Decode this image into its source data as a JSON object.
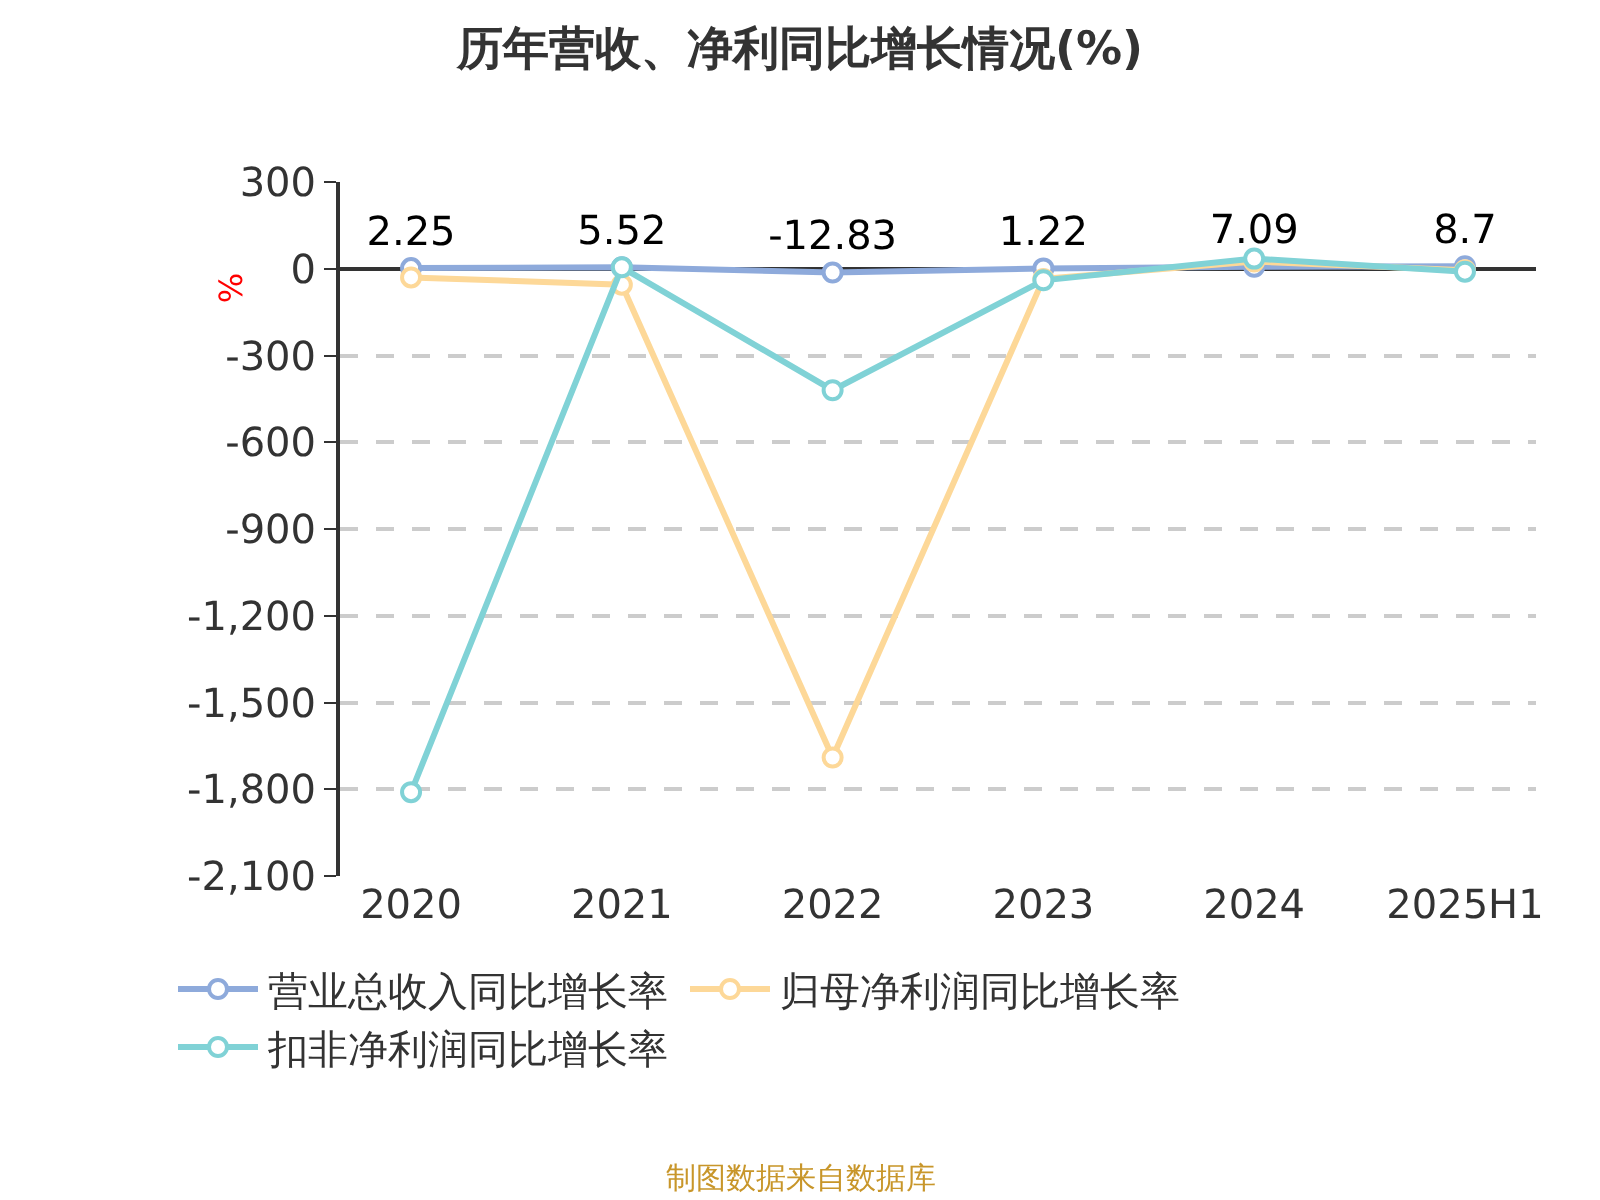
{
  "chart_data": {
    "type": "line",
    "title": "历年营收、净利同比增长情况(%)",
    "ylabel": "%",
    "categories": [
      "2020",
      "2021",
      "2022",
      "2023",
      "2024",
      "2025H1"
    ],
    "series": [
      {
        "name": "营业总收入同比增长率",
        "color": "#8eaadb",
        "values": [
          2.25,
          5.52,
          -12.83,
          1.22,
          7.09,
          8.7
        ],
        "value_labels": [
          "2.25",
          "5.52",
          "-12.83",
          "1.22",
          "7.09",
          "8.7"
        ]
      },
      {
        "name": "归母净利润同比增长率",
        "color": "#fdd898",
        "values": [
          -30,
          -55,
          -1690,
          -35,
          25,
          -5
        ]
      },
      {
        "name": "扣非净利润同比增长率",
        "color": "#80d2d6",
        "values": [
          -1810,
          5,
          -420,
          -40,
          35,
          -10
        ]
      }
    ],
    "ylim": [
      -2100,
      300
    ],
    "yticks": [
      300,
      0,
      -300,
      -600,
      -900,
      {
        "value": -1200,
        "label": "-1,200"
      },
      {
        "value": -1500,
        "label": "-1,500"
      },
      {
        "value": -1800,
        "label": "-1,800"
      },
      {
        "value": -2100,
        "label": "-2,100"
      }
    ],
    "grid": "y",
    "legend": "bottom",
    "marker": "circle",
    "line_style": "solid",
    "annotations": [
      "制图数据来自数据库"
    ]
  }
}
